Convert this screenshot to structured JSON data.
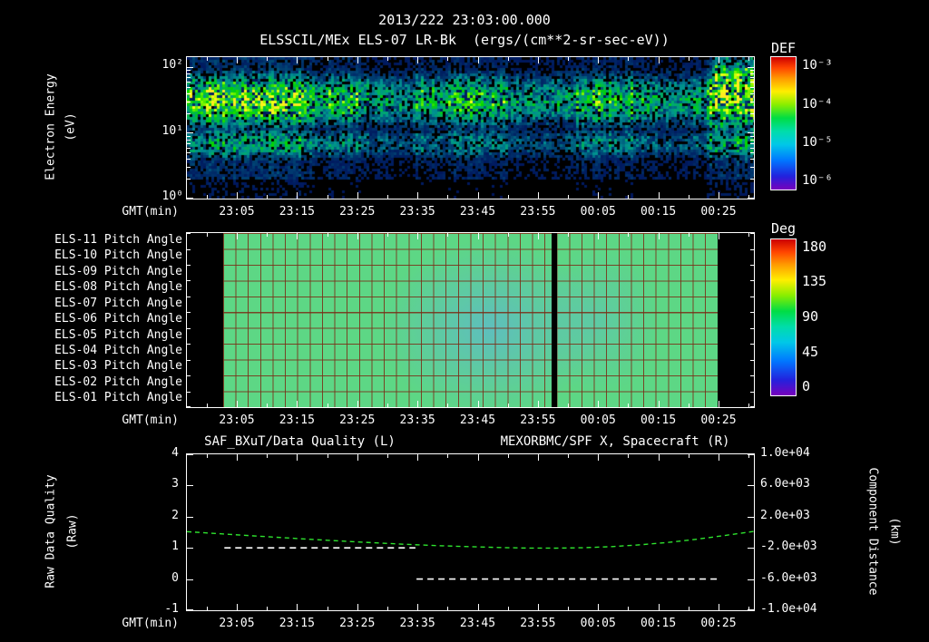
{
  "header": {
    "datetime": "2013/222 23:03:00.000",
    "series_name": "ELSSCIL/MEx ELS-07 LR-Bk",
    "units": "(ergs/(cm**2-sr-sec-eV))"
  },
  "time_axis": {
    "label": "GMT(min)",
    "ticks": [
      "23:05",
      "23:15",
      "23:25",
      "23:35",
      "23:45",
      "23:55",
      "00:05",
      "00:15",
      "00:25"
    ]
  },
  "spectrogram_panel": {
    "ylabel": "Electron Energy",
    "yunits": "(eV)",
    "yticks": [
      "10²",
      "10¹",
      "10⁰"
    ],
    "colorbar_title": "DEF",
    "colorbar_ticks": [
      "10⁻³",
      "10⁻⁴",
      "10⁻⁵",
      "10⁻⁶"
    ]
  },
  "pitch_panel": {
    "row_labels": [
      "ELS-11 Pitch Angle",
      "ELS-10 Pitch Angle",
      "ELS-09 Pitch Angle",
      "ELS-08 Pitch Angle",
      "ELS-07 Pitch Angle",
      "ELS-06 Pitch Angle",
      "ELS-05 Pitch Angle",
      "ELS-04 Pitch Angle",
      "ELS-03 Pitch Angle",
      "ELS-02 Pitch Angle",
      "ELS-01 Pitch Angle"
    ],
    "colorbar_title": "Deg",
    "colorbar_ticks": [
      "180",
      "135",
      "90",
      "45",
      "0"
    ]
  },
  "line_panel": {
    "left_title": "SAF_BXuT/Data Quality (L)",
    "right_title": "MEXORBMC/SPF X, Spacecraft (R)",
    "left_ylabel": "Raw Data Quality",
    "left_yunits": "(Raw)",
    "left_yticks": [
      "4",
      "3",
      "2",
      "1",
      "0",
      "-1"
    ],
    "right_ylabel": "Component Distance",
    "right_yunits": "(km)",
    "right_yticks": [
      "1.0e+04",
      "6.0e+03",
      "2.0e+03",
      "-2.0e+03",
      "-6.0e+03",
      "-1.0e+04"
    ]
  },
  "colors": {
    "background": "#000000",
    "text": "#ffffff",
    "accent_green": "#2ee32e",
    "grid_red": "#7a2c16"
  },
  "chart_data": [
    {
      "type": "heatmap",
      "name": "ELSSCIL/MEx ELS-07 LR-Bk electron energy spectrogram",
      "start_time": "2013/222 23:03:00.000",
      "xlabel": "GMT(min)",
      "x_ticks": [
        "23:05",
        "23:15",
        "23:25",
        "23:35",
        "23:45",
        "23:55",
        "00:05",
        "00:15",
        "00:25"
      ],
      "ylabel": "Electron Energy (eV)",
      "y_scale": "log",
      "ylim": [
        1,
        140
      ],
      "y_ticks": [
        1,
        10,
        100
      ],
      "value_label": "DEF (ergs/(cm**2-sr-sec-eV))",
      "value_range": [
        1e-06,
        0.001
      ],
      "colormap": "rainbow, blue=1e-6 to red=1e-3",
      "background_DEF": 2e-06,
      "features": [
        {
          "time": "23:03-23:25",
          "energy_eV": [
            8,
            60
          ],
          "peak_DEF": 0.00015,
          "description": "bright green-yellow electron flux band"
        },
        {
          "time": "23:25-23:40",
          "energy_eV": [
            8,
            40
          ],
          "peak_DEF": 2e-05,
          "description": "weaker patchy blue-cyan flux"
        },
        {
          "time": "23:40-23:52",
          "energy_eV": [
            8,
            40
          ],
          "peak_DEF": 4e-05,
          "description": "moderate cyan-green band"
        },
        {
          "time": "23:52-00:02",
          "energy_eV": [
            8,
            30
          ],
          "peak_DEF": 1.5e-05,
          "description": "dim blue interval"
        },
        {
          "time": "00:02-00:12",
          "energy_eV": [
            8,
            40
          ],
          "peak_DEF": 4e-05,
          "description": "moderate green patches"
        },
        {
          "time": "00:12-00:22",
          "energy_eV": [
            8,
            40
          ],
          "peak_DEF": 2e-05,
          "description": "weak blue-cyan flux"
        },
        {
          "time": "00:22-00:28",
          "energy_eV": [
            5,
            120
          ],
          "peak_DEF": 0.0002,
          "description": "bright green-yellow burst over wide energy range"
        }
      ]
    },
    {
      "type": "heatmap",
      "name": "ELS pitch angle panels",
      "rows": [
        "ELS-11",
        "ELS-10",
        "ELS-09",
        "ELS-08",
        "ELS-07",
        "ELS-06",
        "ELS-05",
        "ELS-04",
        "ELS-03",
        "ELS-02",
        "ELS-01"
      ],
      "value_label": "Pitch Angle (Deg)",
      "value_range": [
        0,
        180
      ],
      "data_interval": {
        "start": "23:03",
        "end": "00:25",
        "t_frac": [
          0.064,
          0.936
        ],
        "gap_t_frac": 0.645
      },
      "typical_pitch_deg": 95,
      "bluish_interval": {
        "time": "23:35-00:00",
        "approx_pitch_deg": 80
      },
      "grid": "red-brown cell grid, about 2 minutes per cell"
    },
    {
      "type": "line",
      "name": "Data quality and spacecraft component distance",
      "xlabel": "GMT(min)",
      "x_ticks": [
        "23:05",
        "23:15",
        "23:25",
        "23:35",
        "23:45",
        "23:55",
        "00:05",
        "00:15",
        "00:25"
      ],
      "left_axis": {
        "label": "Raw Data Quality (Raw)",
        "lim": [
          -1,
          4
        ]
      },
      "right_axis": {
        "label": "Component Distance (km)",
        "lim": [
          -10000,
          10000
        ]
      },
      "series": [
        {
          "name": "SAF_BXuT/Data Quality (L)",
          "axis": "left",
          "color": "#ffffff",
          "style": "dashed",
          "segments": [
            {
              "t": [
                "23:03",
                "23:35"
              ],
              "t_frac": [
                0.066,
                0.403
              ],
              "value": 1
            },
            {
              "t": [
                "23:35",
                "00:25"
              ],
              "t_frac": [
                0.405,
                0.94
              ],
              "value": 0
            }
          ]
        },
        {
          "name": "MEXORBMC/SPF X, Spacecraft (R)",
          "axis": "right",
          "color": "#2ee32e",
          "style": "dashed",
          "points": [
            [
              0.0,
              80
            ],
            [
              0.05,
              -150
            ],
            [
              0.1,
              -380
            ],
            [
              0.15,
              -600
            ],
            [
              0.2,
              -820
            ],
            [
              0.25,
              -1030
            ],
            [
              0.3,
              -1230
            ],
            [
              0.35,
              -1420
            ],
            [
              0.4,
              -1590
            ],
            [
              0.45,
              -1730
            ],
            [
              0.5,
              -1850
            ],
            [
              0.55,
              -1950
            ],
            [
              0.6,
              -2020
            ],
            [
              0.65,
              -2040
            ],
            [
              0.7,
              -1980
            ],
            [
              0.75,
              -1840
            ],
            [
              0.8,
              -1610
            ],
            [
              0.85,
              -1290
            ],
            [
              0.9,
              -880
            ],
            [
              0.95,
              -400
            ],
            [
              1.0,
              120
            ]
          ]
        }
      ]
    }
  ]
}
